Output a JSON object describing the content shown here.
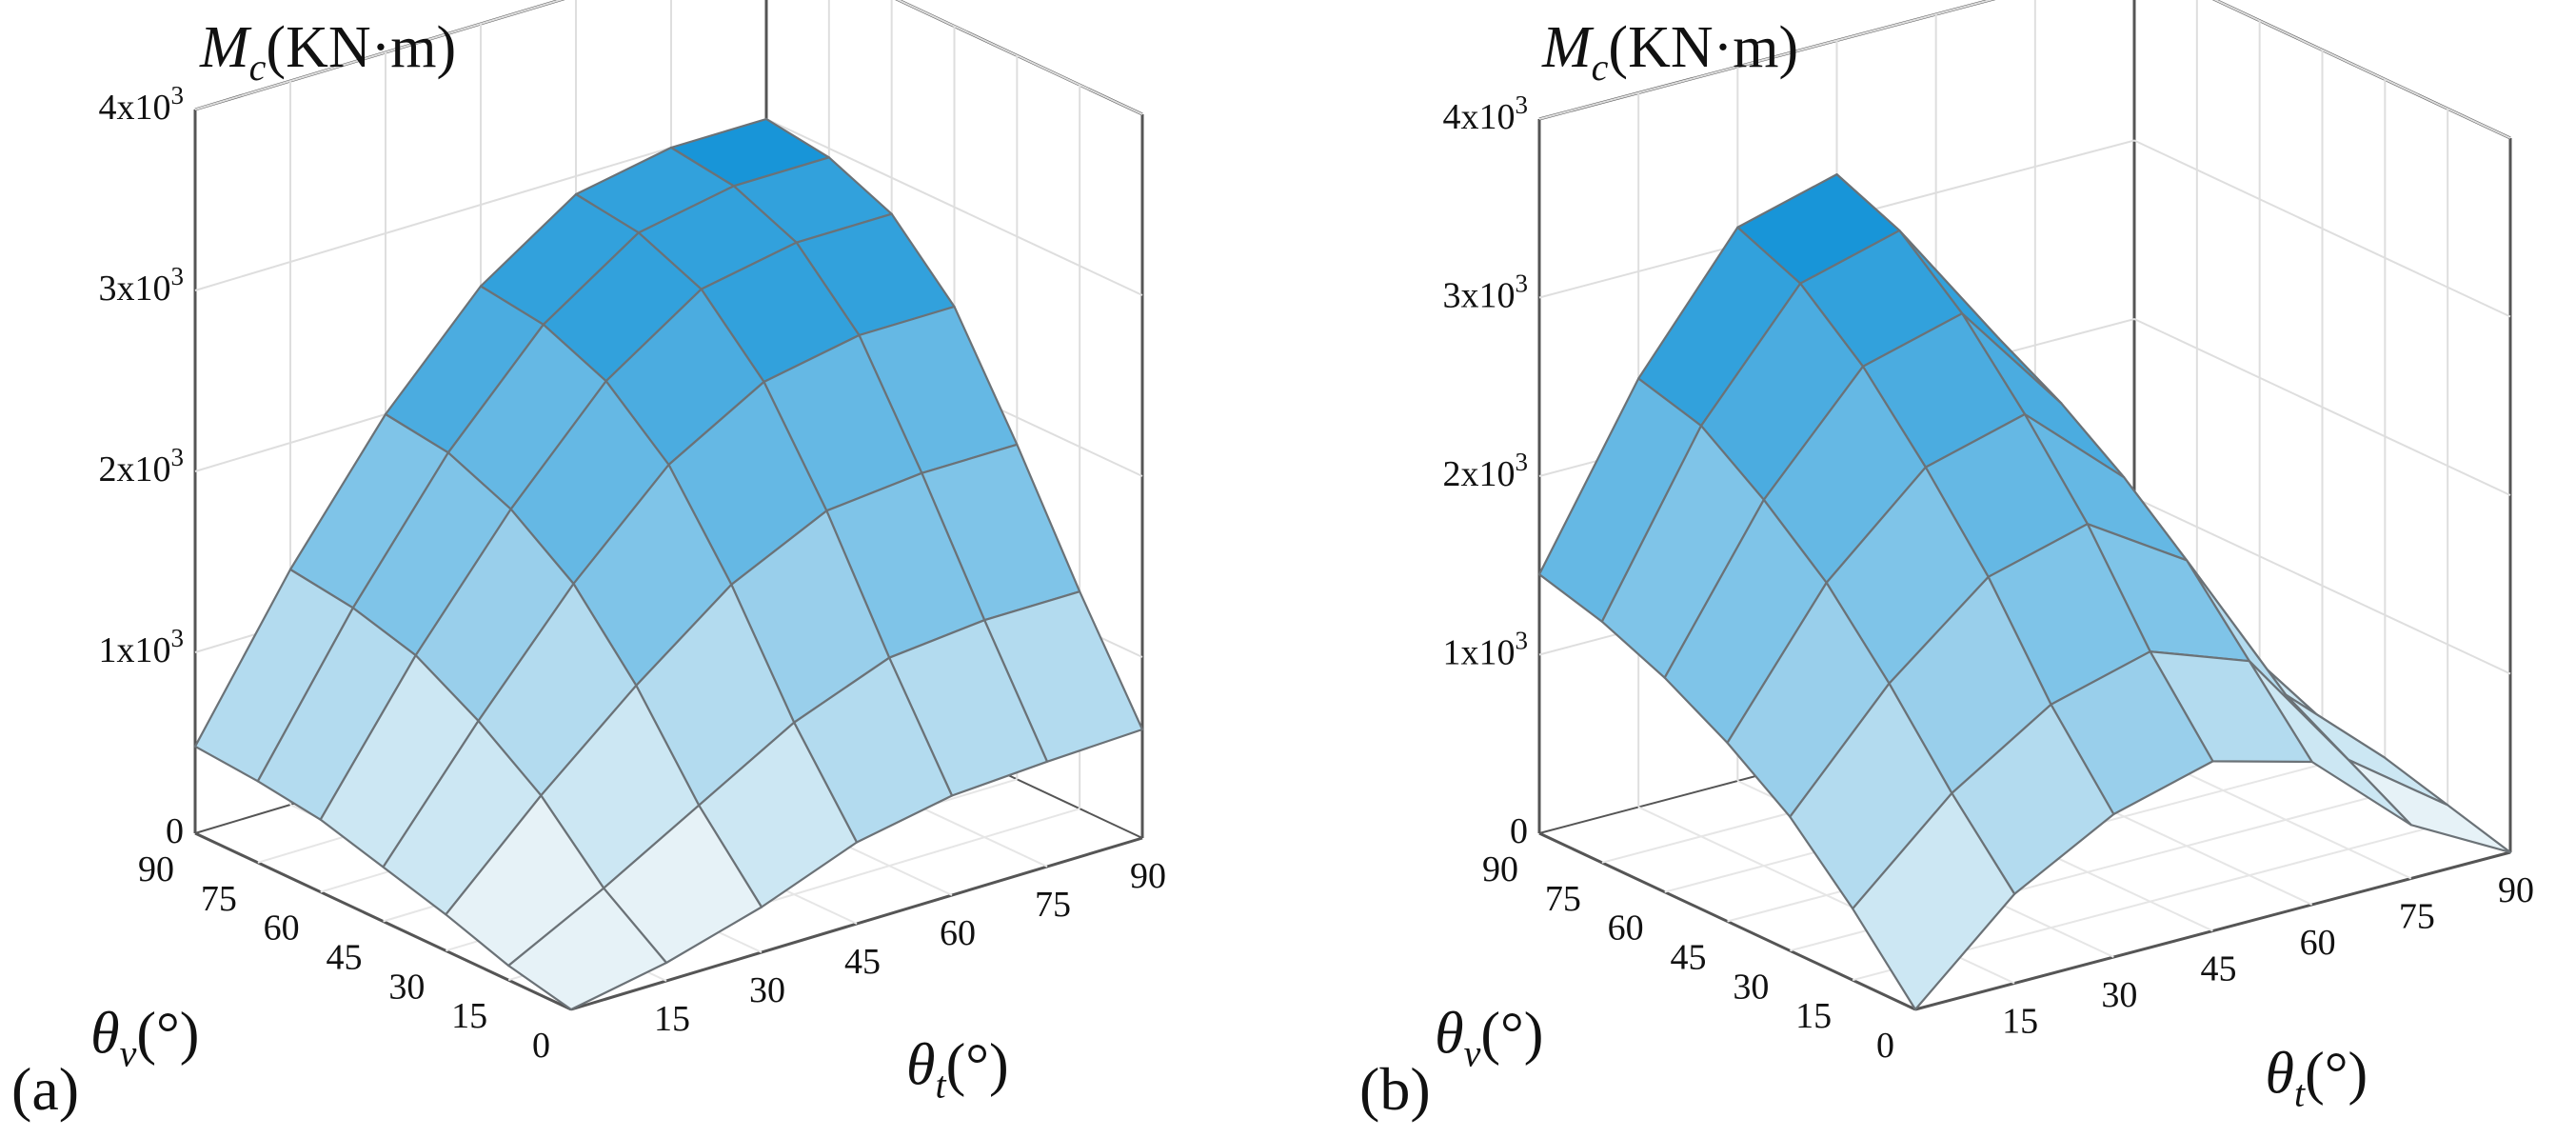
{
  "chart_data": [
    {
      "type": "surface",
      "panel_label": "(a)",
      "zlabel": {
        "symbol": "M",
        "sub": "c",
        "unit": "(KN·m)"
      },
      "xlabel": {
        "symbol": "θ",
        "sub": "v",
        "unit": "(°)"
      },
      "ylabel": {
        "symbol": "θ",
        "sub": "t",
        "unit": "(°)"
      },
      "z_ticks": [
        {
          "value": 0,
          "base": "0",
          "exp": ""
        },
        {
          "value": 1000,
          "base": "1x10",
          "exp": "3"
        },
        {
          "value": 2000,
          "base": "2x10",
          "exp": "3"
        },
        {
          "value": 3000,
          "base": "3x10",
          "exp": "3"
        },
        {
          "value": 4000,
          "base": "4x10",
          "exp": "3"
        }
      ],
      "zlim": [
        0,
        4000
      ],
      "theta_v": [
        0,
        15,
        30,
        45,
        60,
        75,
        90
      ],
      "theta_t": [
        0,
        15,
        30,
        45,
        60,
        75,
        90
      ],
      "theta_v_tick_labels": [
        "0",
        "15",
        "30",
        "45",
        "60",
        "75",
        "90"
      ],
      "theta_t_tick_labels": [
        "0",
        "15",
        "30",
        "45",
        "60",
        "75",
        "90"
      ],
      "z": [
        [
          0,
          100,
          250,
          450,
          550,
          580,
          600
        ],
        [
          80,
          350,
          650,
          950,
          1150,
          1200,
          1200
        ],
        [
          200,
          700,
          1150,
          1550,
          1800,
          1850,
          1850
        ],
        [
          300,
          950,
          1550,
          2050,
          2350,
          2450,
          2450
        ],
        [
          400,
          1150,
          1800,
          2350,
          2700,
          2800,
          2800
        ],
        [
          450,
          1250,
          1950,
          2500,
          2850,
          2950,
          2950
        ],
        [
          480,
          1300,
          2000,
          2550,
          2900,
          3000,
          3000
        ]
      ]
    },
    {
      "type": "surface",
      "panel_label": "(b)",
      "zlabel": {
        "symbol": "M",
        "sub": "c",
        "unit": "(KN·m)"
      },
      "xlabel": {
        "symbol": "θ",
        "sub": "v",
        "unit": "(°)"
      },
      "ylabel": {
        "symbol": "θ",
        "sub": "t",
        "unit": "(°)"
      },
      "z_ticks": [
        {
          "value": 0,
          "base": "0",
          "exp": ""
        },
        {
          "value": 1000,
          "base": "1x10",
          "exp": "3"
        },
        {
          "value": 2000,
          "base": "2x10",
          "exp": "3"
        },
        {
          "value": 3000,
          "base": "3x10",
          "exp": "3"
        },
        {
          "value": 4000,
          "base": "4x10",
          "exp": "3"
        }
      ],
      "zlim": [
        0,
        4000
      ],
      "theta_v": [
        0,
        15,
        30,
        45,
        60,
        75,
        90
      ],
      "theta_t": [
        0,
        15,
        30,
        45,
        60,
        75,
        90
      ],
      "theta_v_tick_labels": [
        "0",
        "15",
        "30",
        "45",
        "60",
        "75",
        "90"
      ],
      "theta_t_tick_labels": [
        "0",
        "15",
        "30",
        "45",
        "60",
        "75",
        "90"
      ],
      "z": [
        [
          0,
          500,
          800,
          950,
          800,
          300,
          0
        ],
        [
          400,
          900,
          1250,
          1400,
          1200,
          500,
          100
        ],
        [
          750,
          1350,
          1800,
          1950,
          1600,
          700,
          200
        ],
        [
          1000,
          1750,
          2250,
          2400,
          1900,
          900,
          250
        ],
        [
          1200,
          2050,
          2650,
          2800,
          2150,
          1000,
          300
        ],
        [
          1350,
          2300,
          2950,
          3100,
          2350,
          1100,
          350
        ],
        [
          1450,
          2400,
          3100,
          3250,
          2450,
          1150,
          350
        ]
      ]
    }
  ]
}
